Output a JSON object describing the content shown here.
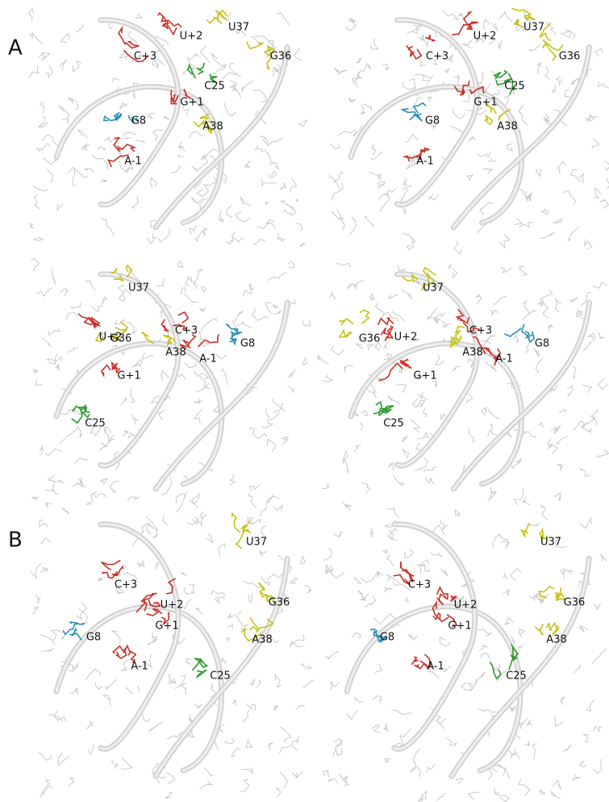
{
  "panels": [
    {
      "label": "A",
      "views": [
        {
          "labels": [
            "U+2",
            "U37",
            "C+3",
            "G36",
            "C25",
            "G+1",
            "G8",
            "A38",
            "A-1"
          ]
        },
        {
          "labels": [
            "U+2",
            "U37",
            "C+3",
            "G36",
            "C25",
            "G+1",
            "G8",
            "A38",
            "A-1"
          ]
        },
        {
          "labels": [
            "U37",
            "C+3",
            "G36",
            "U+2",
            "G8",
            "A38",
            "A-1",
            "G+1",
            "C25"
          ]
        },
        {
          "labels": [
            "U37",
            "C+3",
            "G36",
            "U+2",
            "G8",
            "A38",
            "A-1",
            "G+1",
            "C25"
          ]
        }
      ]
    },
    {
      "label": "B",
      "views": [
        {
          "labels": [
            "U37",
            "C+3",
            "U+2",
            "G36",
            "G+1",
            "G8",
            "A38",
            "A-1",
            "C25"
          ]
        },
        {
          "labels": [
            "U37",
            "C+3",
            "U+2",
            "G36",
            "G+1",
            "G8",
            "A38",
            "A-1",
            "C25"
          ]
        }
      ]
    }
  ]
}
